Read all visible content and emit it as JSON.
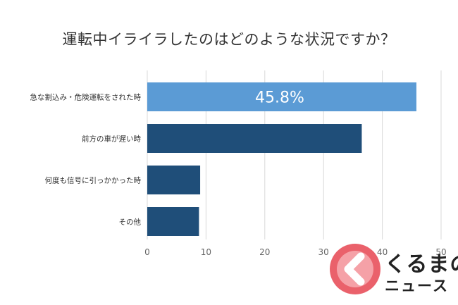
{
  "chart_data": {
    "type": "bar",
    "orientation": "horizontal",
    "title": "運転中イライラしたのはどのような状況ですか？",
    "categories": [
      "急な割込み・危険運転をされた時",
      "前方の車が遅い時",
      "何度も信号に引っかかった時",
      "その他"
    ],
    "values": [
      45.8,
      36.5,
      9.0,
      8.8
    ],
    "data_labels": [
      "45.8%",
      "",
      "",
      ""
    ],
    "xlim": [
      0,
      50
    ],
    "x_ticks": [
      0,
      10,
      20,
      30,
      40,
      50
    ],
    "grid": "vertical",
    "colors": {
      "highlight": "#5B9BD5",
      "default": "#1F4E79",
      "grid": "#D9D9D9"
    }
  },
  "watermark": {
    "line1": "くるまの",
    "line2": "ニュース",
    "colors": {
      "badge": "#E8505B",
      "badge_inner": "#F6A8AE"
    }
  }
}
